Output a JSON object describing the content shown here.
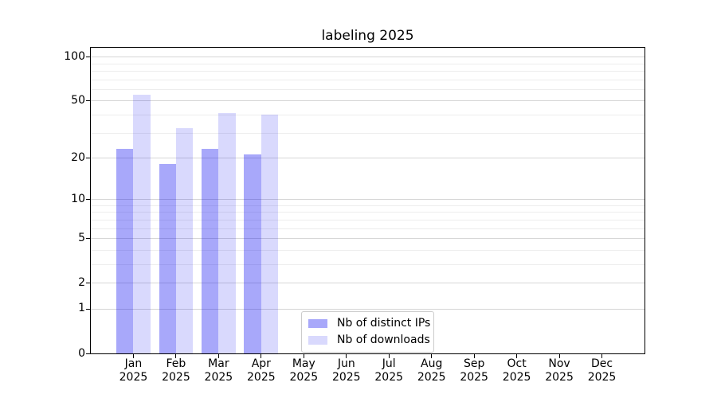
{
  "figure": {
    "background": "#ffffff"
  },
  "chart_data": {
    "type": "bar",
    "title": "labeling 2025",
    "x_tick_months": [
      "Jan",
      "Feb",
      "Mar",
      "Apr",
      "May",
      "Jun",
      "Jul",
      "Aug",
      "Sep",
      "Oct",
      "Nov",
      "Dec"
    ],
    "x_tick_year": "2025",
    "series": [
      {
        "name": "Nb of distinct IPs",
        "color": "rgba(0,0,240,0.34)",
        "values": [
          23,
          18,
          23,
          21,
          null,
          null,
          null,
          null,
          null,
          null,
          null,
          null
        ]
      },
      {
        "name": "Nb of downloads",
        "color": "rgba(0,0,240,0.15)",
        "values": [
          55,
          32,
          41,
          40,
          null,
          null,
          null,
          null,
          null,
          null,
          null,
          null
        ]
      }
    ],
    "yscale": "log1p",
    "ylim": [
      0,
      115
    ],
    "ytick_labels": [
      "0",
      "1",
      "2",
      "5",
      "10",
      "20",
      "50",
      "100"
    ],
    "ytick_values": [
      0,
      1,
      2,
      5,
      10,
      20,
      50,
      100
    ],
    "ytick_minor_values": [
      3,
      4,
      6,
      7,
      8,
      9,
      30,
      40,
      60,
      70,
      80,
      90
    ],
    "legend_position": "lower center",
    "grid": {
      "major_color": "#d6d6d6",
      "minor_color": "#ededed"
    }
  }
}
